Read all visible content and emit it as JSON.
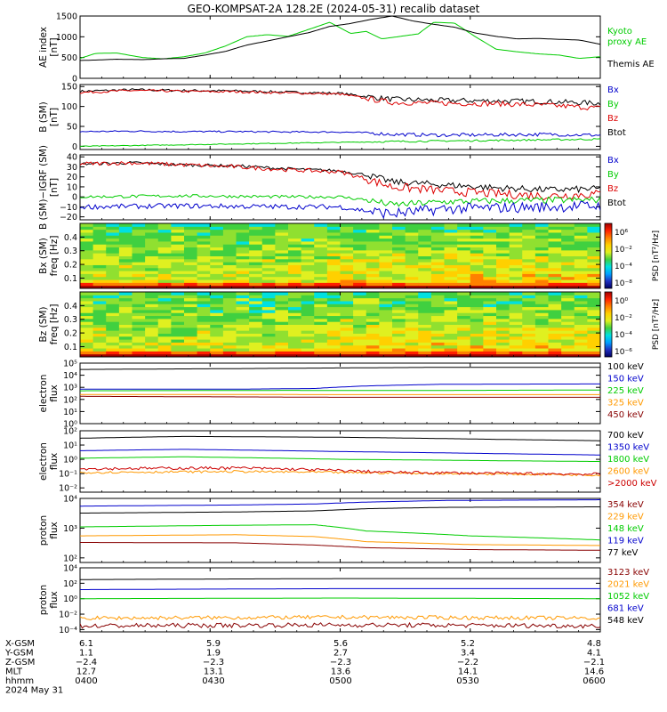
{
  "title": "GEO-KOMPSAT-2A 128.2E (2024-05-31) recalib dataset",
  "chart_data": [
    {
      "id": "ae",
      "type": "line",
      "ylabel": [
        "AE index",
        "[nT]"
      ],
      "ylim": [
        0,
        1500
      ],
      "yticks": [
        0,
        500,
        1000,
        1500
      ],
      "yticklabels": [
        "0",
        "500",
        "1000",
        "1500"
      ],
      "legend": [
        {
          "text": "Kyoto",
          "color": "#00cc00"
        },
        {
          "text": "proxy AE",
          "color": "#00cc00"
        },
        {
          "text": "Themis AE",
          "color": "#000000"
        }
      ],
      "series": [
        {
          "name": "Kyoto proxy AE",
          "color": "#00cc00",
          "x": [
            0,
            0.03,
            0.07,
            0.12,
            0.16,
            0.2,
            0.24,
            0.28,
            0.32,
            0.36,
            0.4,
            0.44,
            0.48,
            0.52,
            0.55,
            0.58,
            0.61,
            0.65,
            0.68,
            0.72,
            0.76,
            0.8,
            0.84,
            0.88,
            0.92,
            0.96,
            1.0
          ],
          "y": [
            480,
            600,
            610,
            500,
            470,
            520,
            610,
            780,
            1000,
            1050,
            1010,
            1180,
            1350,
            1080,
            1130,
            950,
            1000,
            1070,
            1350,
            1330,
            1000,
            700,
            640,
            590,
            560,
            480,
            520
          ]
        },
        {
          "name": "Themis AE",
          "color": "#000000",
          "x": [
            0,
            0.03,
            0.07,
            0.12,
            0.16,
            0.2,
            0.24,
            0.28,
            0.32,
            0.36,
            0.4,
            0.44,
            0.48,
            0.52,
            0.56,
            0.6,
            0.64,
            0.68,
            0.72,
            0.76,
            0.8,
            0.84,
            0.88,
            0.92,
            0.96,
            1.0
          ],
          "y": [
            430,
            440,
            460,
            450,
            470,
            480,
            560,
            650,
            800,
            900,
            1000,
            1100,
            1250,
            1320,
            1420,
            1500,
            1380,
            1300,
            1230,
            1090,
            1010,
            950,
            960,
            940,
            920,
            820
          ]
        }
      ]
    },
    {
      "id": "b",
      "type": "line",
      "ylabel": [
        "B (SM)",
        "[nT]"
      ],
      "ylim": [
        -8,
        155
      ],
      "yticks": [
        0,
        50,
        100,
        150
      ],
      "yticklabels": [
        "0",
        "50",
        "100",
        "150"
      ],
      "legend": [
        {
          "text": "Bx",
          "color": "#0000cc"
        },
        {
          "text": "By",
          "color": "#00cc00"
        },
        {
          "text": "Bz",
          "color": "#dd0000"
        },
        {
          "text": "Btot",
          "color": "#000000"
        }
      ],
      "series": [
        {
          "name": "Btot",
          "color": "#000000",
          "noise": 3,
          "x": [
            0,
            0.1,
            0.2,
            0.3,
            0.4,
            0.5,
            0.55,
            0.6,
            0.7,
            0.8,
            0.9,
            1.0
          ],
          "y": [
            138,
            142,
            140,
            139,
            136,
            133,
            125,
            118,
            115,
            114,
            112,
            108
          ]
        },
        {
          "name": "Bz",
          "color": "#dd0000",
          "noise": 3,
          "x": [
            0,
            0.1,
            0.2,
            0.3,
            0.4,
            0.5,
            0.55,
            0.6,
            0.7,
            0.8,
            0.9,
            1.0
          ],
          "y": [
            135,
            140,
            138,
            137,
            134,
            131,
            120,
            110,
            108,
            107,
            103,
            96
          ]
        },
        {
          "name": "Bx",
          "color": "#0000cc",
          "noise": 2,
          "x": [
            0,
            0.1,
            0.2,
            0.3,
            0.4,
            0.5,
            0.55,
            0.6,
            0.7,
            0.8,
            0.9,
            1.0
          ],
          "y": [
            37,
            38,
            37,
            37,
            36,
            36,
            34,
            30,
            28,
            29,
            30,
            28
          ]
        },
        {
          "name": "By",
          "color": "#00cc00",
          "noise": 1,
          "x": [
            0,
            0.2,
            0.4,
            0.6,
            0.8,
            1.0
          ],
          "y": [
            0,
            4,
            8,
            12,
            15,
            18
          ]
        }
      ]
    },
    {
      "id": "db",
      "type": "line",
      "ylabel": [
        "B (SM)−IGRF (SM)",
        "[nT]"
      ],
      "ylim": [
        -23,
        42
      ],
      "yticks": [
        -20,
        -10,
        0,
        10,
        20,
        30,
        40
      ],
      "yticklabels": [
        "−20",
        "−10",
        "0",
        "10",
        "20",
        "30",
        "40"
      ],
      "legend": [
        {
          "text": "Bx",
          "color": "#0000cc"
        },
        {
          "text": "By",
          "color": "#00cc00"
        },
        {
          "text": "Bz",
          "color": "#dd0000"
        },
        {
          "text": "Btot",
          "color": "#000000"
        }
      ],
      "series": [
        {
          "name": "Btot",
          "color": "#000000",
          "noise": 1.5,
          "x": [
            0,
            0.1,
            0.2,
            0.3,
            0.4,
            0.5,
            0.55,
            0.6,
            0.7,
            0.8,
            0.9,
            1.0
          ],
          "y": [
            33,
            34,
            32,
            31,
            28,
            26,
            22,
            15,
            12,
            9,
            7,
            8
          ]
        },
        {
          "name": "Bz",
          "color": "#dd0000",
          "noise": 2,
          "x": [
            0,
            0.1,
            0.2,
            0.3,
            0.4,
            0.5,
            0.55,
            0.6,
            0.7,
            0.8,
            0.9,
            1.0
          ],
          "y": [
            33,
            34,
            32,
            30,
            27,
            25,
            18,
            10,
            6,
            3,
            1,
            3
          ]
        },
        {
          "name": "By",
          "color": "#00cc00",
          "noise": 1.5,
          "x": [
            0,
            0.2,
            0.4,
            0.5,
            0.55,
            0.6,
            0.7,
            0.8,
            1.0
          ],
          "y": [
            0,
            1,
            0,
            0,
            -3,
            -8,
            -5,
            -4,
            -3
          ]
        },
        {
          "name": "Bx",
          "color": "#0000cc",
          "noise": 2.5,
          "x": [
            0,
            0.2,
            0.4,
            0.5,
            0.55,
            0.6,
            0.7,
            0.8,
            1.0
          ],
          "y": [
            -10,
            -9,
            -10,
            -10,
            -14,
            -17,
            -12,
            -11,
            -9
          ]
        }
      ]
    },
    {
      "id": "bx_psd",
      "type": "heatmap",
      "ylabel": [
        "Bx (SM)",
        "freq [Hz]"
      ],
      "ylim": [
        0.025,
        0.5
      ],
      "yticks": [
        0.1,
        0.2,
        0.3,
        0.4
      ],
      "yticklabels": [
        "0.1",
        "0.2",
        "0.3",
        "0.4"
      ],
      "colorbar_label": "PSD [nT²/Hz]",
      "colorbar_ticks": [
        "10⁶",
        "10⁻²",
        "10⁻⁴",
        "10⁻⁸"
      ]
    },
    {
      "id": "bz_psd",
      "type": "heatmap",
      "ylabel": [
        "Bz (SM)",
        "freq [Hz]"
      ],
      "ylim": [
        0.025,
        0.5
      ],
      "yticks": [
        0.1,
        0.2,
        0.3,
        0.4
      ],
      "yticklabels": [
        "0.1",
        "0.2",
        "0.3",
        "0.4"
      ],
      "colorbar_label": "PSD [nT²/Hz]",
      "colorbar_ticks": [
        "10⁰",
        "10⁻²",
        "10⁻⁴",
        "10⁻⁶"
      ]
    },
    {
      "id": "eflux_low",
      "type": "line",
      "scale": "log",
      "ylabel": [
        "electron",
        "flux"
      ],
      "ylim": [
        1,
        100000
      ],
      "yticks": [
        1,
        10,
        100,
        1000,
        10000,
        100000
      ],
      "yticklabels": [
        "10⁰",
        "10¹",
        "10²",
        "10³",
        "10⁴",
        "10⁵"
      ],
      "legend": [
        {
          "text": "100 keV",
          "color": "#000000"
        },
        {
          "text": "150 keV",
          "color": "#0000cc"
        },
        {
          "text": "225 keV",
          "color": "#00cc00"
        },
        {
          "text": "325 keV",
          "color": "#ff9900"
        },
        {
          "text": "450 keV",
          "color": "#880000"
        }
      ],
      "series": [
        {
          "name": "100 keV",
          "color": "#000000",
          "x": [
            0,
            0.3,
            0.5,
            0.7,
            1.0
          ],
          "y": [
            30000,
            35000,
            40000,
            45000,
            45000
          ]
        },
        {
          "name": "150 keV",
          "color": "#0000cc",
          "x": [
            0,
            0.3,
            0.45,
            0.55,
            0.7,
            1.0
          ],
          "y": [
            700,
            700,
            800,
            1300,
            1800,
            1900
          ]
        },
        {
          "name": "225 keV",
          "color": "#00cc00",
          "x": [
            0,
            0.4,
            0.6,
            1.0
          ],
          "y": [
            520,
            560,
            540,
            600
          ]
        },
        {
          "name": "325 keV",
          "color": "#ff9900",
          "x": [
            0,
            0.5,
            1.0
          ],
          "y": [
            260,
            250,
            250
          ]
        },
        {
          "name": "450 keV",
          "color": "#880000",
          "x": [
            0,
            0.5,
            1.0
          ],
          "y": [
            180,
            150,
            150
          ]
        }
      ]
    },
    {
      "id": "eflux_high",
      "type": "line",
      "scale": "log",
      "ylabel": [
        "electron",
        "flux"
      ],
      "ylim": [
        0.005,
        100
      ],
      "yticks": [
        0.01,
        0.1,
        1,
        10,
        100
      ],
      "yticklabels": [
        "10⁻²",
        "10⁻¹",
        "10⁰",
        "10¹",
        "10²"
      ],
      "legend": [
        {
          "text": "700 keV",
          "color": "#000000"
        },
        {
          "text": "1350 keV",
          "color": "#0000cc"
        },
        {
          "text": "1800 keV",
          "color": "#00cc00"
        },
        {
          "text": "2600 keV",
          "color": "#ff9900"
        },
        {
          "text": ">2000 keV",
          "color": "#cc0000"
        }
      ],
      "series": [
        {
          "name": "700 keV",
          "color": "#000000",
          "x": [
            0,
            0.2,
            0.5,
            0.8,
            1.0
          ],
          "y": [
            30,
            40,
            35,
            25,
            20
          ]
        },
        {
          "name": "1350 keV",
          "color": "#0000cc",
          "x": [
            0,
            0.2,
            0.5,
            0.8,
            1.0
          ],
          "y": [
            4,
            5,
            3.5,
            2.5,
            2
          ]
        },
        {
          "name": "1800 keV",
          "color": "#00cc00",
          "x": [
            0,
            0.2,
            0.5,
            0.8,
            1.0
          ],
          "y": [
            1.2,
            1.5,
            1.0,
            0.8,
            0.7
          ]
        },
        {
          "name": "2600 keV",
          "color": "#ff9900",
          "noise": 0.08,
          "x": [
            0,
            0.3,
            0.6,
            1.0
          ],
          "y": [
            0.12,
            0.14,
            0.11,
            0.08
          ]
        },
        {
          "name": ">2000 keV",
          "color": "#cc0000",
          "noise": 0.1,
          "x": [
            0,
            0.3,
            0.6,
            1.0
          ],
          "y": [
            0.22,
            0.25,
            0.12,
            0.09
          ]
        }
      ]
    },
    {
      "id": "pflux_low",
      "type": "line",
      "scale": "log",
      "ylabel": [
        "proton",
        "flux"
      ],
      "ylim": [
        70,
        10000
      ],
      "yticks": [
        100,
        1000,
        10000
      ],
      "yticklabels": [
        "10²",
        "10³",
        "10⁴"
      ],
      "legend": [
        {
          "text": "354 keV",
          "color": "#880000"
        },
        {
          "text": "229 keV",
          "color": "#ff9900"
        },
        {
          "text": "148 keV",
          "color": "#00cc00"
        },
        {
          "text": "119 keV",
          "color": "#0000cc"
        },
        {
          "text": "77 keV",
          "color": "#000000"
        }
      ],
      "series": [
        {
          "name": "77 keV",
          "color": "#000000",
          "x": [
            0,
            0.3,
            0.45,
            0.55,
            0.7,
            1.0
          ],
          "y": [
            3200,
            3500,
            3800,
            4500,
            5000,
            5200
          ]
        },
        {
          "name": "119 keV",
          "color": "#0000cc",
          "x": [
            0,
            0.3,
            0.45,
            0.55,
            0.7,
            1.0
          ],
          "y": [
            5500,
            6000,
            6500,
            7500,
            8500,
            9000
          ]
        },
        {
          "name": "148 keV",
          "color": "#00cc00",
          "x": [
            0,
            0.3,
            0.45,
            0.55,
            0.75,
            1.0
          ],
          "y": [
            1100,
            1250,
            1300,
            800,
            550,
            400
          ]
        },
        {
          "name": "229 keV",
          "color": "#ff9900",
          "x": [
            0,
            0.3,
            0.45,
            0.55,
            0.75,
            1.0
          ],
          "y": [
            550,
            600,
            520,
            350,
            280,
            260
          ]
        },
        {
          "name": "354 keV",
          "color": "#880000",
          "x": [
            0,
            0.3,
            0.45,
            0.55,
            0.75,
            1.0
          ],
          "y": [
            330,
            320,
            270,
            220,
            190,
            180
          ]
        }
      ]
    },
    {
      "id": "pflux_high",
      "type": "line",
      "scale": "log",
      "ylabel": [
        "proton",
        "flux"
      ],
      "ylim": [
        5e-05,
        10000
      ],
      "yticks": [
        0.0001,
        0.01,
        1,
        100,
        10000
      ],
      "yticklabels": [
        "10⁻⁴",
        "10⁻²",
        "10⁰",
        "10²",
        "10⁴"
      ],
      "legend": [
        {
          "text": "3123 keV",
          "color": "#880000"
        },
        {
          "text": "2021 keV",
          "color": "#ff9900"
        },
        {
          "text": "1052 keV",
          "color": "#00cc00"
        },
        {
          "text": "681 keV",
          "color": "#0000cc"
        },
        {
          "text": "548 keV",
          "color": "#000000"
        }
      ],
      "series": [
        {
          "name": "548 keV",
          "color": "#000000",
          "x": [
            0,
            0.5,
            1.0
          ],
          "y": [
            300,
            400,
            400
          ]
        },
        {
          "name": "681 keV",
          "color": "#0000cc",
          "x": [
            0,
            0.5,
            1.0
          ],
          "y": [
            15,
            20,
            20
          ]
        },
        {
          "name": "1052 keV",
          "color": "#00cc00",
          "x": [
            0,
            0.5,
            1.0
          ],
          "y": [
            1,
            1.2,
            1
          ]
        },
        {
          "name": "2021 keV",
          "color": "#ff9900",
          "noise": 0.25,
          "x": [
            0,
            0.5,
            1.0
          ],
          "y": [
            0.003,
            0.004,
            0.003
          ]
        },
        {
          "name": "3123 keV",
          "color": "#880000",
          "noise": 0.3,
          "x": [
            0,
            0.5,
            1.0
          ],
          "y": [
            0.0003,
            0.0004,
            0.0003
          ]
        }
      ]
    }
  ],
  "orbit_table": {
    "rows": [
      {
        "label": "X-GSM",
        "values": [
          "6.1",
          "5.9",
          "5.6",
          "5.2",
          "4.8"
        ]
      },
      {
        "label": "Y-GSM",
        "values": [
          "1.1",
          "1.9",
          "2.7",
          "3.4",
          "4.1"
        ]
      },
      {
        "label": "Z-GSM",
        "values": [
          "−2.4",
          "−2.3",
          "−2.3",
          "−2.2",
          "−2.1"
        ]
      },
      {
        "label": "MLT",
        "values": [
          "12.7",
          "13.1",
          "13.6",
          "14.1",
          "14.6"
        ]
      },
      {
        "label": "hhmm",
        "values": [
          "0400",
          "0430",
          "0500",
          "0530",
          "0600"
        ]
      }
    ],
    "date": "2024 May 31"
  }
}
